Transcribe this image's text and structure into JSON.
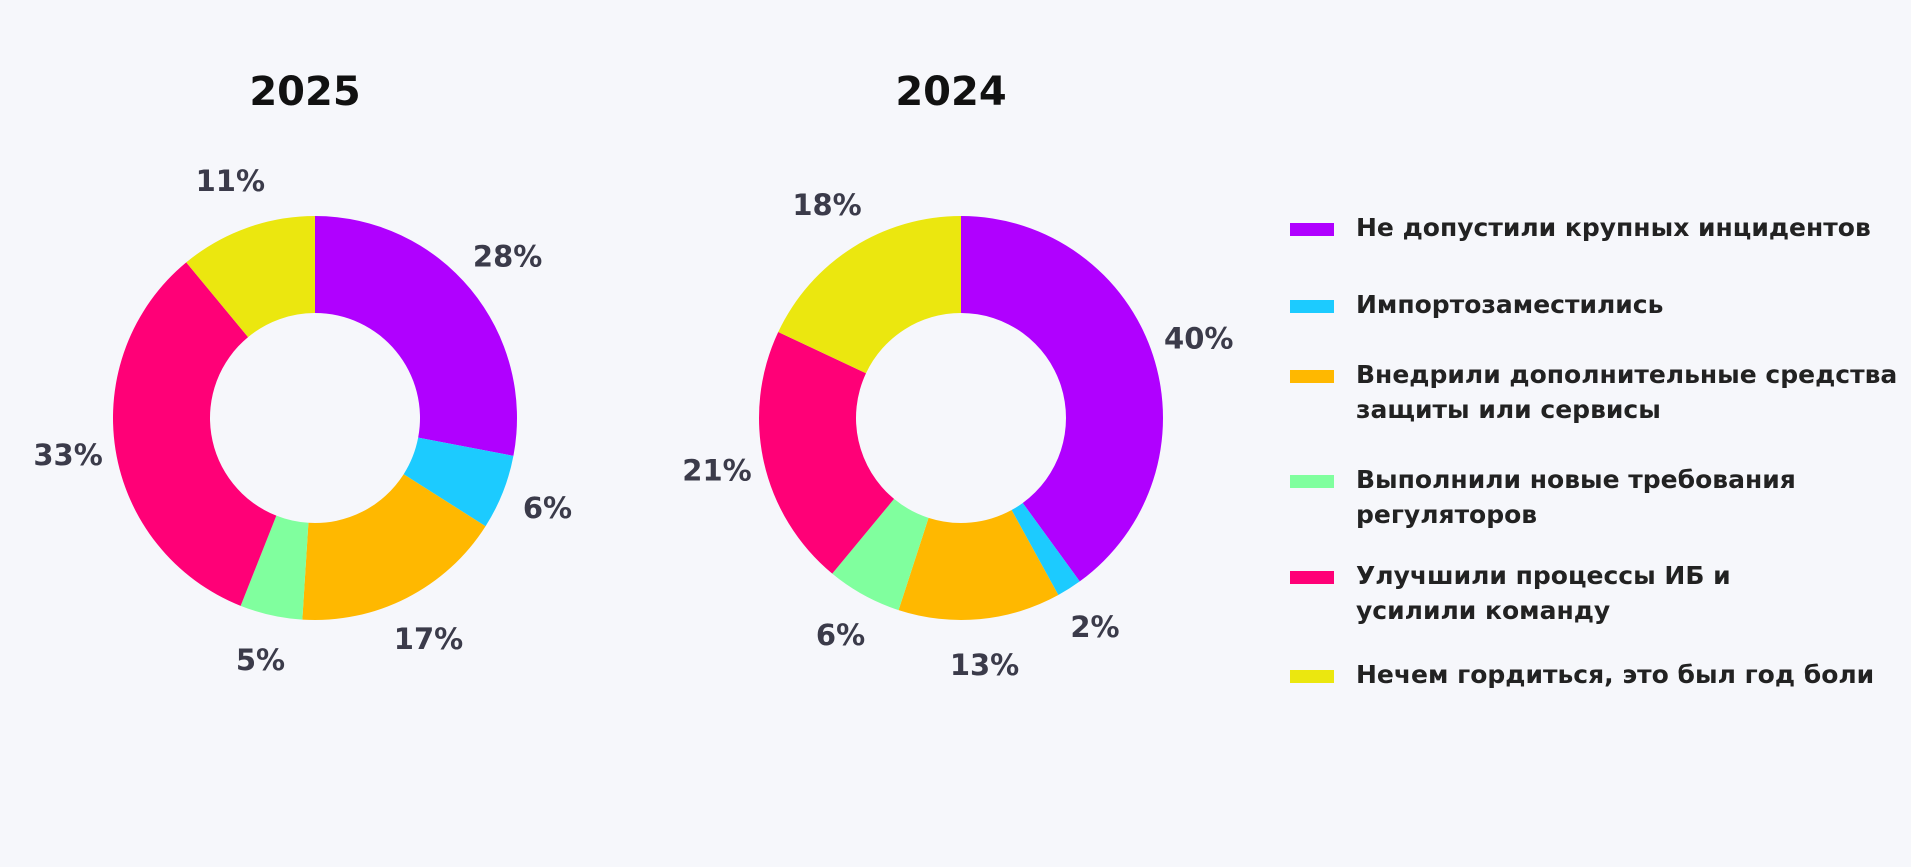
{
  "legend": {
    "labels": [
      "Не допустили крупных инцидентов",
      "Импортозаместились",
      "Внедрили дополнительные средства защиты или сервисы",
      "Выполнили новые требования регуляторов",
      "Улучшили процессы ИБ и усилили команду",
      "Нечем гордиться, это был год боли"
    ],
    "colors": [
      "#b000ff",
      "#1ccbff",
      "#ffb800",
      "#80ff9e",
      "#ff0077",
      "#ebe70f"
    ]
  },
  "chart_data": [
    {
      "type": "pie",
      "donut": true,
      "title": "2025",
      "values": [
        28,
        6,
        17,
        5,
        33,
        11
      ],
      "value_labels": [
        "28%",
        "6%",
        "17%",
        "5%",
        "33%",
        "11%"
      ]
    },
    {
      "type": "pie",
      "donut": true,
      "title": "2024",
      "values": [
        40,
        2,
        13,
        6,
        21,
        18
      ],
      "value_labels": [
        "40%",
        "2%",
        "13%",
        "6%",
        "21%",
        "18%"
      ]
    }
  ]
}
